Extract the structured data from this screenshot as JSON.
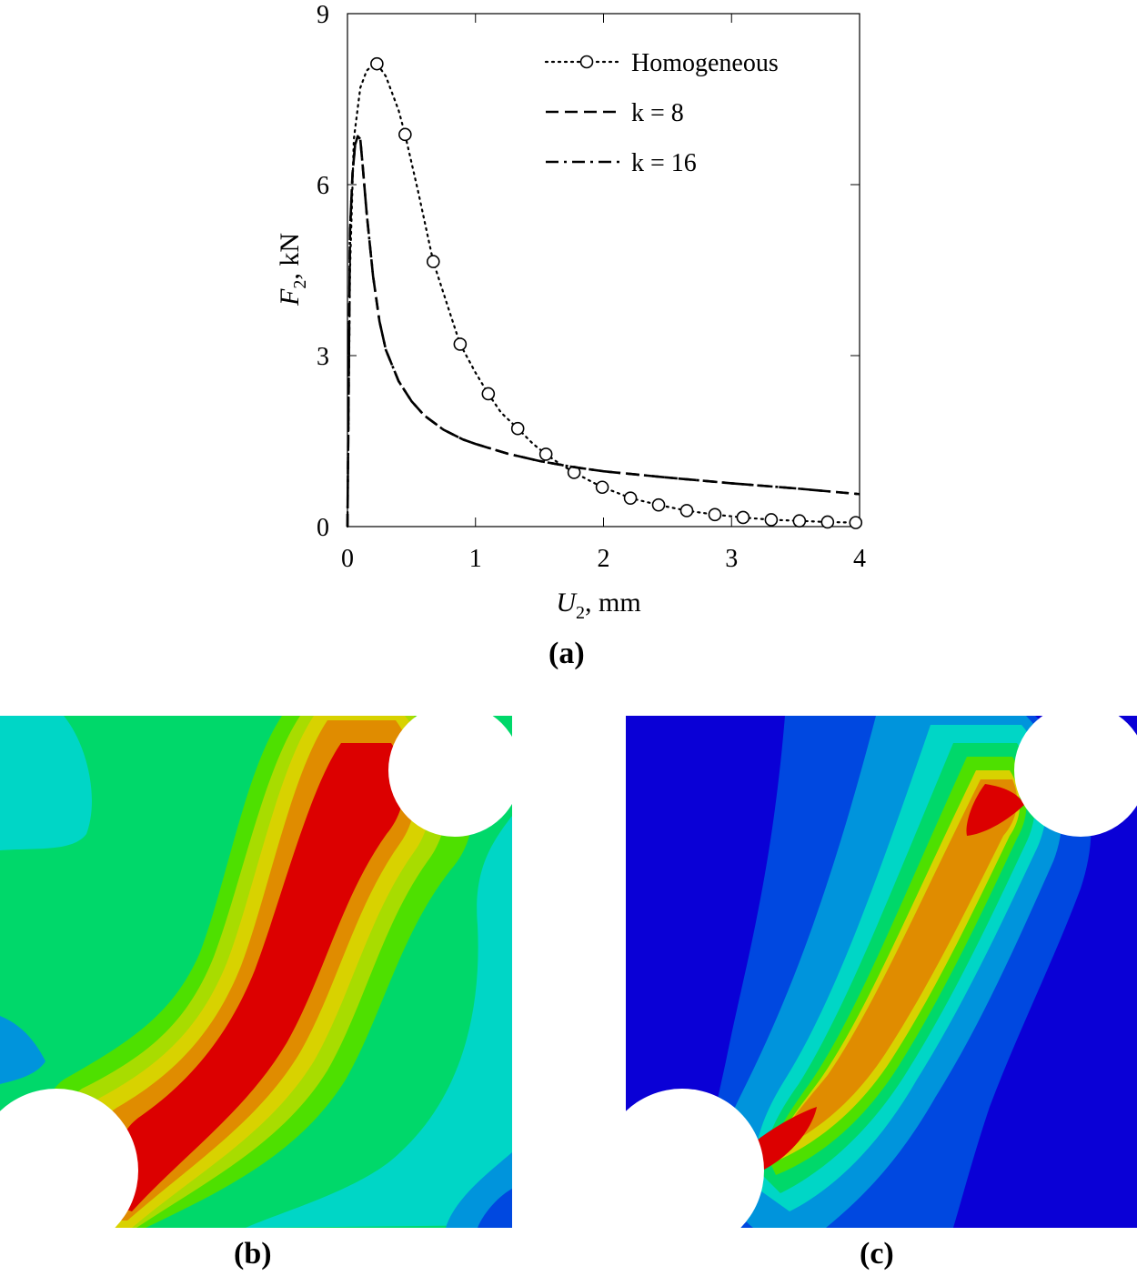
{
  "chart_data": {
    "type": "line",
    "xlabel_var": "U",
    "xlabel_sub": "2",
    "xlabel_unit": ", mm",
    "ylabel_var": "F",
    "ylabel_sub": "2",
    "ylabel_unit": ", kN",
    "xlim": [
      0,
      4
    ],
    "ylim": [
      0,
      9
    ],
    "xticks": [
      "0",
      "1",
      "2",
      "3",
      "4"
    ],
    "yticks": [
      "0",
      "3",
      "6",
      "9"
    ],
    "legend_position": "top-right",
    "grid": false,
    "series": [
      {
        "name": "Homogeneous",
        "style": "dotted-circle",
        "x": [
          0,
          0.02,
          0.05,
          0.1,
          0.15,
          0.2,
          0.23,
          0.3,
          0.4,
          0.45,
          0.55,
          0.67,
          0.8,
          0.88,
          1.0,
          1.1,
          1.2,
          1.33,
          1.45,
          1.55,
          1.66,
          1.77,
          1.88,
          1.99,
          2.1,
          2.21,
          2.32,
          2.43,
          2.65,
          2.87,
          3.09,
          3.31,
          3.53,
          3.75,
          3.97
        ],
        "y": [
          0,
          4.5,
          6.8,
          7.7,
          8.0,
          8.1,
          8.12,
          7.9,
          7.3,
          6.88,
          5.9,
          4.65,
          3.75,
          3.2,
          2.7,
          2.33,
          2.0,
          1.72,
          1.45,
          1.27,
          1.1,
          0.95,
          0.82,
          0.69,
          0.6,
          0.5,
          0.44,
          0.38,
          0.28,
          0.21,
          0.16,
          0.12,
          0.1,
          0.08,
          0.07
        ],
        "markers_x": [
          0.23,
          0.45,
          0.67,
          0.88,
          1.1,
          1.33,
          1.55,
          1.77,
          1.99,
          2.21,
          2.43,
          2.65,
          2.87,
          3.09,
          3.31,
          3.53,
          3.75,
          3.97
        ],
        "markers_y": [
          8.12,
          6.88,
          4.65,
          3.2,
          2.33,
          1.72,
          1.27,
          0.95,
          0.69,
          0.5,
          0.38,
          0.28,
          0.21,
          0.16,
          0.12,
          0.1,
          0.08,
          0.07
        ]
      },
      {
        "name": "k = 8",
        "style": "dashed",
        "x": [
          0,
          0.02,
          0.04,
          0.06,
          0.08,
          0.1,
          0.12,
          0.15,
          0.2,
          0.25,
          0.3,
          0.4,
          0.5,
          0.6,
          0.75,
          0.9,
          1.0,
          1.25,
          1.5,
          1.75,
          2.0,
          2.5,
          3.0,
          3.5,
          4.0
        ],
        "y": [
          0,
          5.2,
          6.2,
          6.7,
          6.85,
          6.8,
          6.3,
          5.5,
          4.4,
          3.6,
          3.1,
          2.55,
          2.2,
          1.95,
          1.7,
          1.53,
          1.45,
          1.28,
          1.15,
          1.05,
          0.97,
          0.86,
          0.76,
          0.67,
          0.57
        ]
      },
      {
        "name": "k = 16",
        "style": "dashdot",
        "x": [
          0,
          0.02,
          0.04,
          0.06,
          0.08,
          0.1,
          0.12,
          0.15,
          0.2,
          0.25,
          0.3,
          0.4,
          0.5,
          0.6,
          0.75,
          0.9,
          1.0,
          1.25,
          1.5,
          1.75,
          2.0,
          2.5,
          3.0,
          3.5,
          4.0
        ],
        "y": [
          0,
          5.2,
          6.2,
          6.7,
          6.85,
          6.8,
          6.3,
          5.5,
          4.4,
          3.6,
          3.1,
          2.55,
          2.2,
          1.95,
          1.7,
          1.53,
          1.45,
          1.28,
          1.15,
          1.05,
          0.97,
          0.86,
          0.76,
          0.67,
          0.57
        ]
      }
    ]
  },
  "captions": {
    "a": "(a)",
    "b": "(b)",
    "c": "(c)"
  },
  "contour_colors": {
    "deep_blue": "#0a00d6",
    "blue": "#0048e0",
    "light_blue": "#0094dc",
    "cyan": "#00d6c6",
    "green": "#00d86a",
    "lime": "#4ee000",
    "yellow_green": "#a8dc00",
    "yellow": "#d8d200",
    "orange": "#e08c00",
    "red": "#dc0000"
  }
}
